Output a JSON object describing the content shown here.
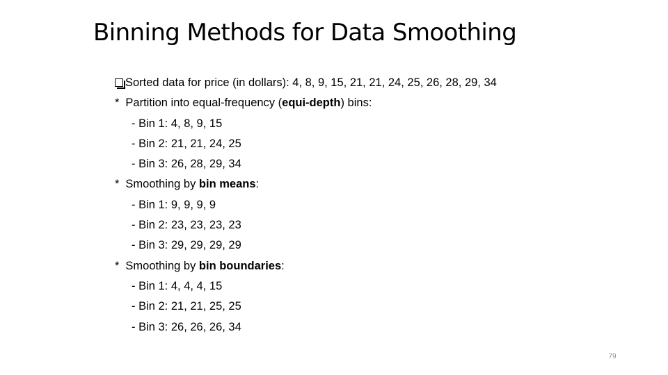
{
  "slide": {
    "title": "Binning Methods for Data Smoothing",
    "page_number": "79"
  },
  "content": {
    "sorted_data": "Sorted data for price (in dollars): 4, 8, 9, 15, 21, 21, 24, 25, 26, 28, 29, 34",
    "partition": {
      "bullet": "*",
      "prefix": "Partition into equal-frequency (",
      "bold": "equi-depth",
      "suffix": ") bins:"
    },
    "partition_bins": [
      "- Bin 1: 4, 8, 9, 15",
      "- Bin 2: 21, 21, 24, 25",
      "- Bin 3: 26, 28, 29, 34"
    ],
    "means": {
      "bullet": "*",
      "prefix": "Smoothing by ",
      "bold": "bin means",
      "suffix": ":"
    },
    "means_bins": [
      "- Bin 1: 9, 9, 9, 9",
      "- Bin 2: 23, 23, 23, 23",
      "- Bin 3: 29, 29, 29, 29"
    ],
    "boundaries": {
      "bullet": "*",
      "prefix": "Smoothing by ",
      "bold": "bin boundaries",
      "suffix": ":"
    },
    "boundaries_bins": [
      "- Bin 1: 4, 4, 4, 15",
      "- Bin 2: 21, 21, 25, 25",
      "- Bin 3: 26, 26, 26, 34"
    ]
  }
}
